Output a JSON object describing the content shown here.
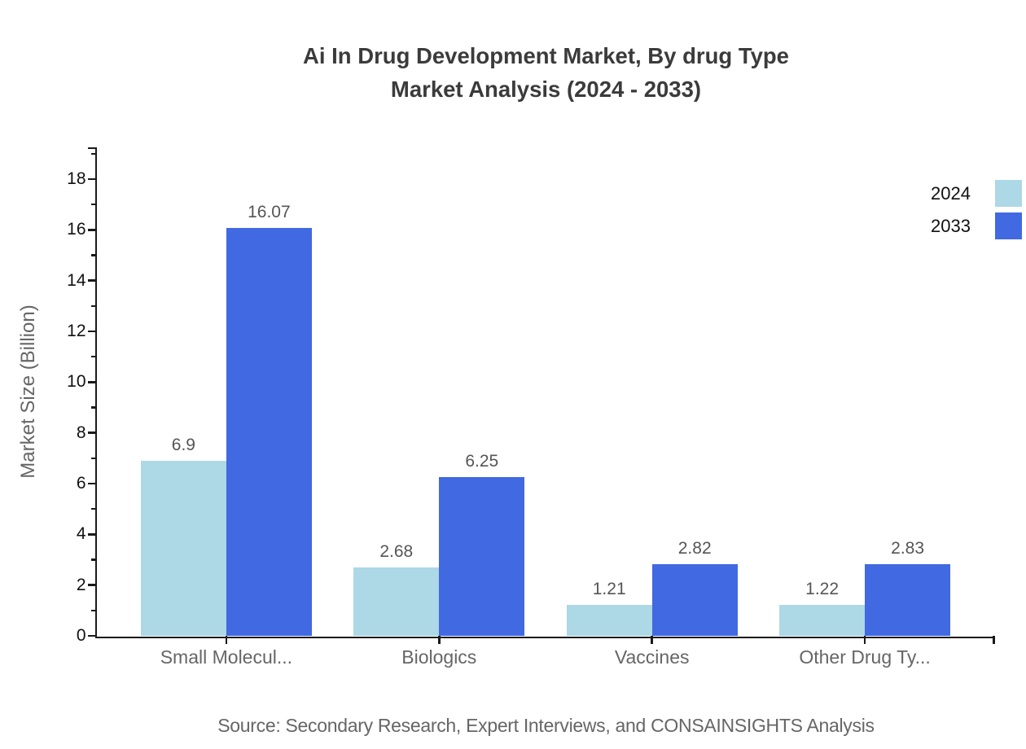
{
  "title": {
    "line1": "Ai In Drug Development Market, By drug Type",
    "line2": "Market Analysis (2024 - 2033)"
  },
  "source": "Source: Secondary Research, Expert Interviews, and CONSAINSIGHTS Analysis",
  "chart_data": {
    "type": "bar",
    "categories": [
      "Small Molecul...",
      "Biologics",
      "Vaccines",
      "Other Drug Ty..."
    ],
    "series": [
      {
        "name": "2024",
        "color": "#ADD8E6",
        "values": [
          6.9,
          2.68,
          1.21,
          1.22
        ]
      },
      {
        "name": "2033",
        "color": "#4169E1",
        "values": [
          16.07,
          6.25,
          2.82,
          2.83
        ]
      }
    ],
    "title": "Ai In Drug Development Market, By drug Type Market Analysis (2024 - 2033)",
    "xlabel": "",
    "ylabel": "Market Size (Billion)",
    "ylim": [
      0,
      19.2
    ],
    "yticks": [
      0,
      2,
      4,
      6,
      8,
      10,
      12,
      14,
      16,
      18
    ],
    "grid": false,
    "legend_position": "upper right",
    "value_labels": true
  }
}
